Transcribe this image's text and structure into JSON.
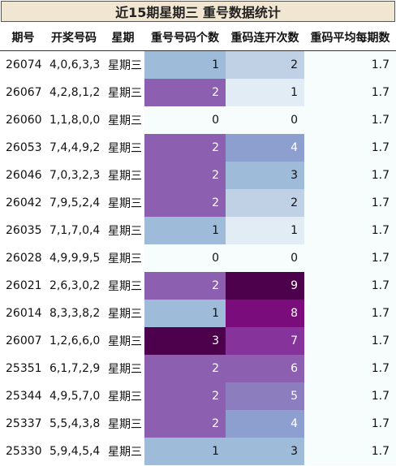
{
  "title": "近15期星期三 重号数据统计",
  "headers": [
    "期号",
    "开奖号码",
    "星期",
    "重号号码个数",
    "重码连开次数",
    "重码平均每期数"
  ],
  "rows": [
    {
      "period": "26074",
      "numbers": "4,0,6,3,3",
      "weekday": "星期三",
      "repeat": "1",
      "streak": "2",
      "avg": "1.7",
      "repeat_bg": "#9ebcda",
      "streak_bg": "#c0d1e6"
    },
    {
      "period": "26067",
      "numbers": "4,2,8,1,2",
      "weekday": "星期三",
      "repeat": "2",
      "streak": "1",
      "avg": "1.7",
      "repeat_bg": "#8c5fb0",
      "streak_bg": "#e2ecf5"
    },
    {
      "period": "26060",
      "numbers": "1,1,8,0,0",
      "weekday": "星期三",
      "repeat": "0",
      "streak": "0",
      "avg": "1.7",
      "repeat_bg": "#f7fcfd",
      "streak_bg": "#f7fcfd"
    },
    {
      "period": "26053",
      "numbers": "7,4,4,9,2",
      "weekday": "星期三",
      "repeat": "2",
      "streak": "4",
      "avg": "1.7",
      "repeat_bg": "#8c5fb0",
      "streak_bg": "#8c9fcf"
    },
    {
      "period": "26046",
      "numbers": "7,0,3,2,3",
      "weekday": "星期三",
      "repeat": "2",
      "streak": "3",
      "avg": "1.7",
      "repeat_bg": "#8c5fb0",
      "streak_bg": "#9ebcda"
    },
    {
      "period": "26042",
      "numbers": "7,9,5,2,4",
      "weekday": "星期三",
      "repeat": "2",
      "streak": "2",
      "avg": "1.7",
      "repeat_bg": "#8c5fb0",
      "streak_bg": "#c0d1e6"
    },
    {
      "period": "26035",
      "numbers": "7,1,7,0,4",
      "weekday": "星期三",
      "repeat": "1",
      "streak": "1",
      "avg": "1.7",
      "repeat_bg": "#9ebcda",
      "streak_bg": "#e2ecf5"
    },
    {
      "period": "26028",
      "numbers": "4,9,9,9,5",
      "weekday": "星期三",
      "repeat": "0",
      "streak": "0",
      "avg": "1.7",
      "repeat_bg": "#f7fcfd",
      "streak_bg": "#f7fcfd"
    },
    {
      "period": "26021",
      "numbers": "2,6,3,0,2",
      "weekday": "星期三",
      "repeat": "2",
      "streak": "9",
      "avg": "1.7",
      "repeat_bg": "#8c5fb0",
      "streak_bg": "#4d004b"
    },
    {
      "period": "26014",
      "numbers": "8,3,3,8,2",
      "weekday": "星期三",
      "repeat": "1",
      "streak": "8",
      "avg": "1.7",
      "repeat_bg": "#9ebcda",
      "streak_bg": "#7a0c7c"
    },
    {
      "period": "26007",
      "numbers": "1,2,6,6,0",
      "weekday": "星期三",
      "repeat": "3",
      "streak": "7",
      "avg": "1.7",
      "repeat_bg": "#4d004b",
      "streak_bg": "#87339c"
    },
    {
      "period": "25351",
      "numbers": "6,1,7,2,9",
      "weekday": "星期三",
      "repeat": "2",
      "streak": "6",
      "avg": "1.7",
      "repeat_bg": "#8c5fb0",
      "streak_bg": "#8c5fb0"
    },
    {
      "period": "25344",
      "numbers": "4,9,5,7,0",
      "weekday": "星期三",
      "repeat": "2",
      "streak": "5",
      "avg": "1.7",
      "repeat_bg": "#8c5fb0",
      "streak_bg": "#8c7dbf"
    },
    {
      "period": "25337",
      "numbers": "5,5,4,3,8",
      "weekday": "星期三",
      "repeat": "2",
      "streak": "4",
      "avg": "1.7",
      "repeat_bg": "#8c5fb0",
      "streak_bg": "#8c9fcf"
    },
    {
      "period": "25330",
      "numbers": "5,9,4,5,4",
      "weekday": "星期三",
      "repeat": "1",
      "streak": "3",
      "avg": "1.7",
      "repeat_bg": "#9ebcda",
      "streak_bg": "#9ebcda"
    }
  ]
}
